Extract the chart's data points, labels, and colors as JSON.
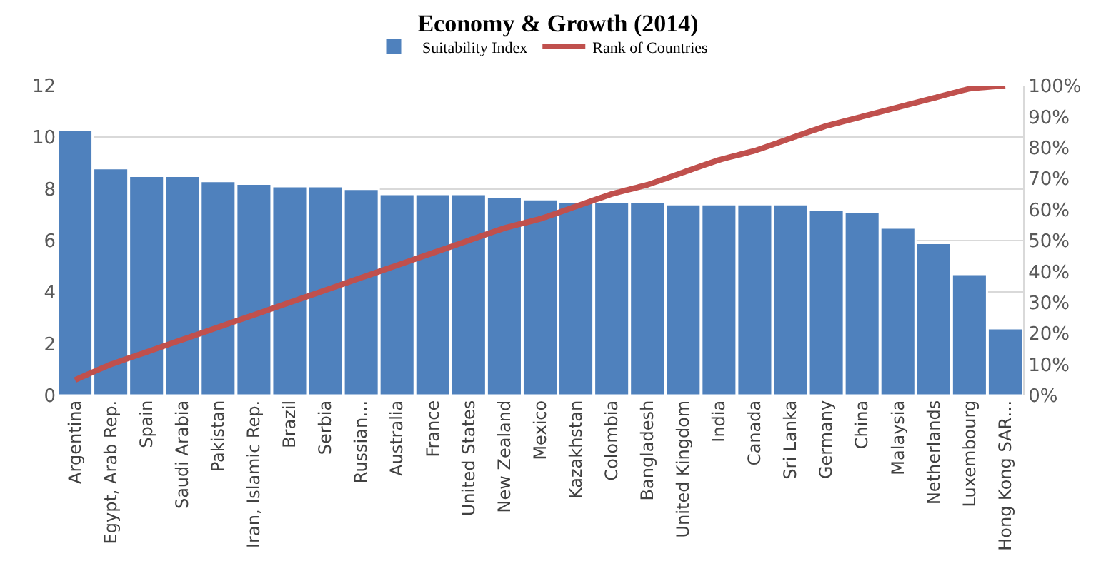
{
  "chart_data": {
    "type": "bar",
    "title": "Economy & Growth (2014)",
    "categories": [
      "Argentina",
      "Egypt, Arab Rep.",
      "Spain",
      "Saudi Arabia",
      "Pakistan",
      "Iran, Islamic Rep.",
      "Brazil",
      "Serbia",
      "Russian…",
      "Australia",
      "France",
      "United States",
      "New Zealand",
      "Mexico",
      "Kazakhstan",
      "Colombia",
      "Bangladesh",
      "United Kingdom",
      "India",
      "Canada",
      "Sri Lanka",
      "Germany",
      "China",
      "Malaysia",
      "Netherlands",
      "Luxembourg",
      "Hong Kong SAR…"
    ],
    "series": [
      {
        "name": "Suitability Index",
        "color": "#4f81bd",
        "values": [
          10.3,
          8.8,
          8.5,
          8.5,
          8.3,
          8.2,
          8.1,
          8.1,
          8.0,
          7.8,
          7.8,
          7.8,
          7.7,
          7.6,
          7.5,
          7.5,
          7.5,
          7.4,
          7.4,
          7.4,
          7.4,
          7.2,
          7.1,
          6.5,
          5.9,
          4.7,
          2.6
        ]
      },
      {
        "name": "Rank of Countries",
        "type": "line",
        "axis": "y2",
        "color": "#c0504d",
        "values": [
          5,
          10,
          14,
          18,
          22,
          26,
          30,
          34,
          38,
          42,
          46,
          50,
          54,
          57,
          61,
          65,
          68,
          72,
          76,
          79,
          83,
          87,
          90,
          93,
          96,
          99,
          100
        ]
      }
    ],
    "ylim": [
      0,
      12
    ],
    "yticks": [
      0,
      2,
      4,
      6,
      8,
      10,
      12
    ],
    "y2lim": [
      0,
      100
    ],
    "y2ticks": [
      {
        "value": 0,
        "label": "0%"
      },
      {
        "value": 10,
        "label": "10%"
      },
      {
        "value": 20,
        "label": "20%"
      },
      {
        "value": 30,
        "label": "30%"
      },
      {
        "value": 40,
        "label": "40%"
      },
      {
        "value": 50,
        "label": "50%"
      },
      {
        "value": 60,
        "label": "60%"
      },
      {
        "value": 70,
        "label": "70%"
      },
      {
        "value": 80,
        "label": "80%"
      },
      {
        "value": 90,
        "label": "90%"
      },
      {
        "value": 100,
        "label": "100%"
      }
    ],
    "grid": "y",
    "legend": "top",
    "marker": "none",
    "line_style": "solid"
  }
}
